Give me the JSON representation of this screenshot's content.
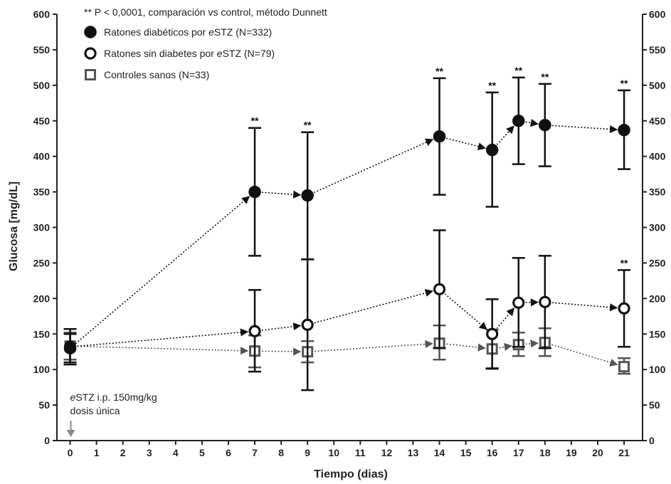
{
  "chart_data": {
    "type": "line",
    "xlabel": "Tiempo (dias)",
    "ylabel": "Glucosa [mg/dL]",
    "xlim": [
      -0.5,
      21.7
    ],
    "ylim": [
      0,
      600
    ],
    "x_ticks": [
      0,
      1,
      2,
      3,
      4,
      5,
      6,
      7,
      8,
      9,
      10,
      11,
      12,
      13,
      14,
      15,
      16,
      17,
      18,
      19,
      20,
      21
    ],
    "y_ticks": [
      0,
      50,
      100,
      150,
      200,
      250,
      300,
      350,
      400,
      450,
      500,
      550,
      600
    ],
    "right_axis": true,
    "grid": false,
    "legend_position": "top-left",
    "significance_note": "** P < 0,0001, comparación vs control, método Dunnett",
    "significance_marker": "**",
    "annotation": {
      "line1_prefix": "e",
      "line1_rest": "STZ i.p. 150mg/kg",
      "line2": "dosis única",
      "x": 0
    },
    "series": [
      {
        "name": "Ratones diabéticos por eSTZ (N=332)",
        "legend_parts": [
          "Ratones diabéticos por ",
          "e",
          "STZ (N=332)"
        ],
        "marker": "filled-circle",
        "color": "#111111",
        "x": [
          0,
          7,
          9,
          14,
          16,
          17,
          18,
          21
        ],
        "y": [
          130,
          350,
          345,
          428,
          409,
          450,
          444,
          437
        ],
        "err_low": [
          110,
          260,
          255,
          346,
          329,
          389,
          386,
          382
        ],
        "err_high": [
          150,
          440,
          434,
          510,
          490,
          511,
          502,
          493
        ],
        "significant": [
          false,
          true,
          true,
          true,
          true,
          true,
          true,
          true
        ]
      },
      {
        "name": "Ratones sin diabetes por eSTZ (N=79)",
        "legend_parts": [
          "Ratones sin diabetes por ",
          "e",
          "STZ (N=79)"
        ],
        "marker": "open-circle",
        "color": "#111111",
        "x": [
          0,
          7,
          9,
          14,
          16,
          17,
          18,
          21
        ],
        "y": [
          132,
          154,
          163,
          213,
          150,
          194,
          195,
          186
        ],
        "err_low": [
          107,
          97,
          71,
          130,
          101,
          132,
          130,
          132
        ],
        "err_high": [
          157,
          212,
          255,
          296,
          199,
          257,
          260,
          240
        ],
        "significant": [
          false,
          false,
          false,
          false,
          false,
          false,
          false,
          true
        ]
      },
      {
        "name": "Controles sanos (N=33)",
        "legend_parts": [
          "Controles sanos (N=33)"
        ],
        "marker": "open-square",
        "color": "#555555",
        "x": [
          0,
          7,
          9,
          14,
          16,
          17,
          18,
          21
        ],
        "y": [
          133,
          126,
          125,
          137,
          129,
          135,
          138,
          104
        ],
        "err_low": [
          114,
          103,
          110,
          114,
          102,
          119,
          119,
          94
        ],
        "err_high": [
          152,
          148,
          140,
          162,
          156,
          152,
          158,
          116
        ],
        "significant": [
          false,
          false,
          false,
          false,
          false,
          false,
          false,
          false
        ]
      }
    ]
  }
}
